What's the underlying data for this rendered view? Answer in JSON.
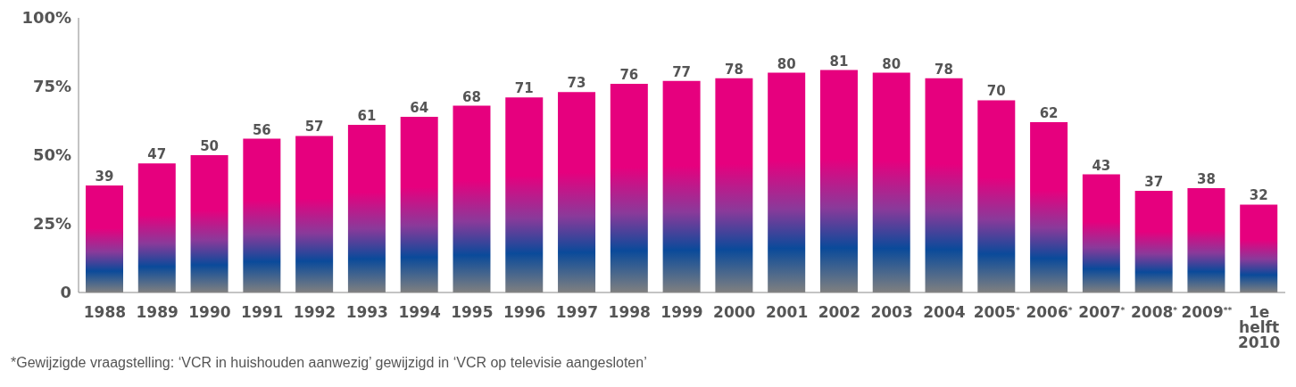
{
  "chart_data": {
    "type": "bar",
    "categories": [
      "1988",
      "1989",
      "1990",
      "1991",
      "1992",
      "1993",
      "1994",
      "1995",
      "1996",
      "1997",
      "1998",
      "1999",
      "2000",
      "2001",
      "2002",
      "2003",
      "2004",
      "2005$^{*}$",
      "2006$^{*}$",
      "2007$^{*}$",
      "2008$^{*}$",
      "2009$^{**}$",
      "1e helft 2010"
    ],
    "values": [
      39,
      47,
      50,
      56,
      57,
      61,
      64,
      68,
      71,
      73,
      76,
      77,
      78,
      80,
      81,
      80,
      78,
      70,
      62,
      43,
      37,
      38,
      32
    ],
    "color": "#e6007e",
    "ylim": [
      0,
      100
    ],
    "yticks": [
      {
        "value": 0,
        "label": "0"
      },
      {
        "value": 25,
        "label": "25%"
      },
      {
        "value": 50,
        "label": "50%"
      },
      {
        "value": 75,
        "label": "75%"
      },
      {
        "value": 100,
        "label": "100%"
      }
    ],
    "grid": false,
    "data_labels": true,
    "annotations": [
      "*Gewijzigde vraagstelling: ‘VCR in huishouden aanwezig’ gewijzigd in ‘VCR op televisie aangesloten’"
    ]
  }
}
